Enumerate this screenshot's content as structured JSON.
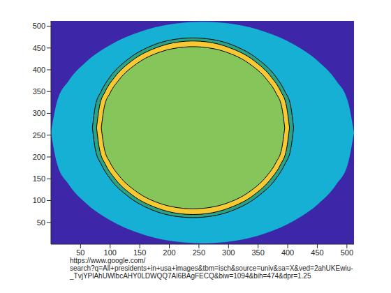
{
  "chart_data": {
    "type": "contour",
    "xlabel": [
      "https://www.google.com/",
      "search?q=All+presidents+in+usa+images&tbm=isch&source=univ&sa=X&ved=2ahUKEwiu-",
      "_TvjYPlAhUWlbcAHY0LDWQQ7Al6BAgFECQ&biw=1094&bih=474&dpr=1.25"
    ],
    "xlim": [
      0,
      512
    ],
    "ylim": [
      0,
      512
    ],
    "xticks": [
      50,
      100,
      150,
      200,
      250,
      300,
      350,
      400,
      450,
      500
    ],
    "yticks": [
      50,
      100,
      150,
      200,
      250,
      300,
      350,
      400,
      450,
      500
    ],
    "contours": [
      {
        "color": "#3e26a8",
        "x": [
          0,
          512
        ],
        "lower": [
          0,
          0
        ],
        "upper": [
          512,
          512
        ]
      },
      {
        "color": "#15b0d4",
        "x": [
          0,
          10,
          30,
          60,
          100,
          150,
          200,
          256,
          312,
          362,
          412,
          452,
          482,
          502,
          512
        ],
        "lower": [
          256,
          186,
          137,
          93,
          55,
          25,
          8,
          2,
          8,
          25,
          55,
          93,
          137,
          186,
          256
        ],
        "upper": [
          256,
          326,
          375,
          419,
          457,
          487,
          504,
          510,
          504,
          487,
          457,
          419,
          375,
          326,
          256
        ]
      },
      {
        "color": "#2aa387",
        "x": [
          70,
          75,
          85,
          100,
          130,
          170,
          210,
          240,
          270,
          310,
          350,
          380,
          395,
          405,
          410
        ],
        "lower": [
          267,
          217,
          183,
          150,
          110,
          79,
          64,
          61,
          64,
          79,
          110,
          150,
          183,
          217,
          267
        ],
        "upper": [
          267,
          317,
          351,
          384,
          424,
          455,
          470,
          473,
          470,
          455,
          424,
          384,
          351,
          317,
          267
        ]
      },
      {
        "color": "#f8c932",
        "x": [
          77,
          82,
          92,
          107,
          137,
          177,
          217,
          240,
          263,
          303,
          343,
          373,
          388,
          398,
          403
        ],
        "lower": [
          267,
          218,
          183,
          152,
          113,
          84,
          70,
          68,
          70,
          84,
          113,
          152,
          183,
          218,
          267
        ],
        "upper": [
          267,
          316,
          351,
          382,
          421,
          450,
          464,
          466,
          464,
          450,
          421,
          382,
          351,
          316,
          267
        ]
      },
      {
        "color": "#86c55a",
        "x": [
          85,
          90,
          100,
          115,
          145,
          185,
          225,
          240,
          255,
          295,
          335,
          365,
          380,
          390,
          395
        ],
        "lower": [
          267,
          220,
          187,
          157,
          120,
          93,
          82,
          81,
          82,
          93,
          120,
          157,
          187,
          220,
          267
        ],
        "upper": [
          267,
          314,
          347,
          377,
          414,
          441,
          452,
          453,
          452,
          441,
          414,
          377,
          347,
          314,
          267
        ]
      }
    ]
  }
}
